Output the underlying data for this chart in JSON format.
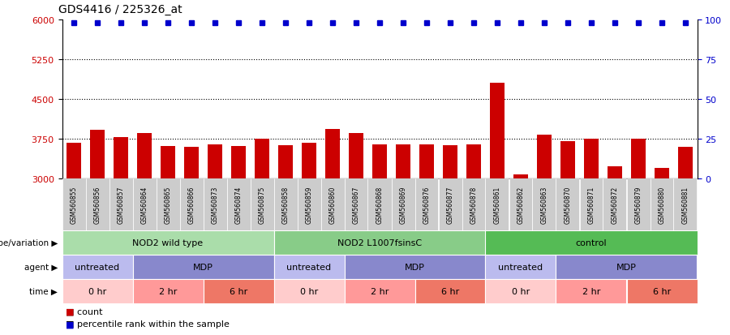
{
  "title": "GDS4416 / 225326_at",
  "samples": [
    "GSM560855",
    "GSM560856",
    "GSM560857",
    "GSM560864",
    "GSM560865",
    "GSM560866",
    "GSM560873",
    "GSM560874",
    "GSM560875",
    "GSM560858",
    "GSM560859",
    "GSM560860",
    "GSM560867",
    "GSM560868",
    "GSM560869",
    "GSM560876",
    "GSM560877",
    "GSM560878",
    "GSM560861",
    "GSM560862",
    "GSM560863",
    "GSM560870",
    "GSM560871",
    "GSM560872",
    "GSM560879",
    "GSM560880",
    "GSM560881"
  ],
  "counts": [
    3680,
    3920,
    3780,
    3850,
    3610,
    3590,
    3640,
    3610,
    3750,
    3630,
    3680,
    3930,
    3850,
    3650,
    3640,
    3650,
    3630,
    3640,
    4800,
    3080,
    3830,
    3700,
    3750,
    3230,
    3750,
    3200,
    3590
  ],
  "percentiles": [
    98,
    98,
    98,
    98,
    98,
    98,
    98,
    98,
    98,
    98,
    98,
    98,
    98,
    98,
    98,
    98,
    98,
    98,
    98,
    98,
    98,
    98,
    98,
    98,
    98,
    98,
    98
  ],
  "ylim_left": [
    3000,
    6000
  ],
  "ylim_right": [
    0,
    100
  ],
  "yticks_left": [
    3000,
    3750,
    4500,
    5250,
    6000
  ],
  "yticks_right": [
    0,
    25,
    50,
    75,
    100
  ],
  "bar_color": "#cc0000",
  "dot_color": "#0000cc",
  "bg_color": "#ffffff",
  "label_bg_color": "#cccccc",
  "genotype_groups": [
    {
      "label": "NOD2 wild type",
      "start": 0,
      "end": 9,
      "color": "#aaddaa"
    },
    {
      "label": "NOD2 L1007fsinsC",
      "start": 9,
      "end": 18,
      "color": "#88cc88"
    },
    {
      "label": "control",
      "start": 18,
      "end": 27,
      "color": "#55bb55"
    }
  ],
  "agent_groups": [
    {
      "label": "untreated",
      "start": 0,
      "end": 3,
      "color": "#bbbbee"
    },
    {
      "label": "MDP",
      "start": 3,
      "end": 9,
      "color": "#8888cc"
    },
    {
      "label": "untreated",
      "start": 9,
      "end": 12,
      "color": "#bbbbee"
    },
    {
      "label": "MDP",
      "start": 12,
      "end": 18,
      "color": "#8888cc"
    },
    {
      "label": "untreated",
      "start": 18,
      "end": 21,
      "color": "#bbbbee"
    },
    {
      "label": "MDP",
      "start": 21,
      "end": 27,
      "color": "#8888cc"
    }
  ],
  "time_groups": [
    {
      "label": "0 hr",
      "start": 0,
      "end": 3,
      "color": "#ffcccc"
    },
    {
      "label": "2 hr",
      "start": 3,
      "end": 6,
      "color": "#ff9999"
    },
    {
      "label": "6 hr",
      "start": 6,
      "end": 9,
      "color": "#ee7766"
    },
    {
      "label": "0 hr",
      "start": 9,
      "end": 12,
      "color": "#ffcccc"
    },
    {
      "label": "2 hr",
      "start": 12,
      "end": 15,
      "color": "#ff9999"
    },
    {
      "label": "6 hr",
      "start": 15,
      "end": 18,
      "color": "#ee7766"
    },
    {
      "label": "0 hr",
      "start": 18,
      "end": 21,
      "color": "#ffcccc"
    },
    {
      "label": "2 hr",
      "start": 21,
      "end": 24,
      "color": "#ff9999"
    },
    {
      "label": "6 hr",
      "start": 24,
      "end": 27,
      "color": "#ee7766"
    }
  ],
  "legend_items": [
    {
      "label": "count",
      "color": "#cc0000"
    },
    {
      "label": "percentile rank within the sample",
      "color": "#0000cc"
    }
  ],
  "row_labels": [
    "genotype/variation",
    "agent",
    "time"
  ]
}
